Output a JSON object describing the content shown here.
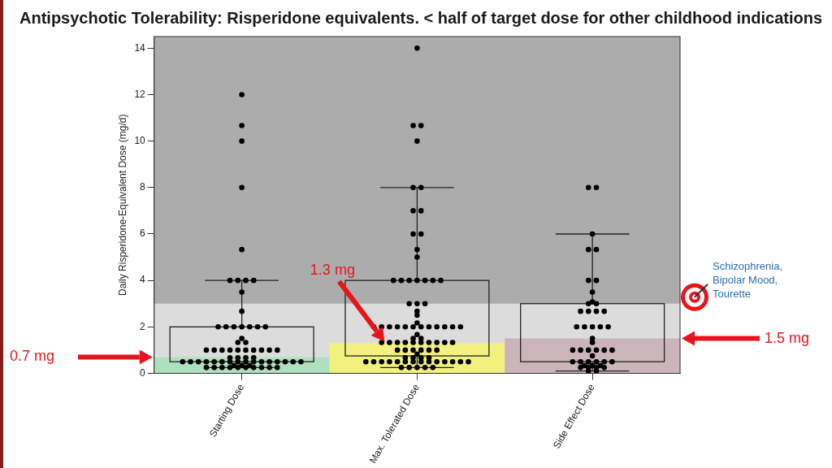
{
  "chart_data": {
    "type": "box",
    "title": "Antipsychotic Tolerability: Risperidone equivalents.  < half of target dose for other childhood indications",
    "y_label": "Daily Risperidone-Equivalent Dose (mg/d)",
    "categories": [
      "Starting Dose",
      "Max. Tolerated Dose",
      "Side Effect Dose"
    ],
    "color": "#000000",
    "points": [
      [
        12,
        10.67,
        10,
        8,
        5.33,
        4,
        4,
        4,
        4,
        3.5,
        2.67,
        2,
        2,
        2,
        2,
        2,
        2,
        2,
        1.5,
        1.33,
        1.33,
        1,
        1,
        1,
        1,
        1,
        1,
        1,
        1,
        1,
        1,
        0.67,
        0.67,
        0.67,
        0.67,
        0.5,
        0.5,
        0.5,
        0.5,
        0.5,
        0.5,
        0.5,
        0.5,
        0.5,
        0.5,
        0.5,
        0.5,
        0.5,
        0.5,
        0.5,
        0.5,
        0.33,
        0.33,
        0.33,
        0.25,
        0.25,
        0.25,
        0.25,
        0.25,
        0.25,
        0.25,
        0.25,
        0.25,
        0.25
      ],
      [
        14,
        10.67,
        10.67,
        10,
        8,
        8,
        7,
        7,
        6,
        6,
        5.33,
        5,
        4,
        4,
        4,
        4,
        4,
        4,
        4,
        3,
        3,
        3,
        2.67,
        2.5,
        2.17,
        2,
        2,
        2,
        2,
        2,
        2,
        2,
        2,
        2,
        2,
        2,
        2,
        1.67,
        1.5,
        1.5,
        1.33,
        1.33,
        1.33,
        1.33,
        1.33,
        1.33,
        1.33,
        1.33,
        1.33,
        1.33,
        1,
        1,
        1,
        1,
        1,
        1,
        0.83,
        0.67,
        0.67,
        0.67,
        0.67,
        0.5,
        0.5,
        0.5,
        0.5,
        0.5,
        0.5,
        0.5,
        0.5,
        0.5,
        0.5,
        0.5,
        0.5,
        0.5,
        0.5,
        0.25,
        0.25,
        0.25,
        0.25,
        0.25
      ],
      [
        8,
        8,
        6,
        5.33,
        5.33,
        4,
        4,
        3.5,
        3.08,
        3,
        3,
        2.67,
        2.67,
        2.67,
        2.67,
        2,
        2,
        2,
        2,
        2,
        1.5,
        1.33,
        1,
        1,
        1,
        1,
        1,
        1,
        0.75,
        0.5,
        0.5,
        0.5,
        0.5,
        0.5,
        0.5,
        0.33,
        0.33,
        0.33,
        0.25,
        0.25,
        0.25,
        0.25,
        0.1,
        0.1
      ]
    ],
    "boxes": [
      {
        "whisker_low": 0.25,
        "q1": 0.5,
        "q3": 2,
        "whisker_high": 4
      },
      {
        "whisker_low": 0.25,
        "q1": 0.75,
        "q3": 4,
        "whisker_high": 8
      },
      {
        "whisker_low": 0.1,
        "q1": 0.5,
        "q3": 3,
        "whisker_high": 6
      }
    ],
    "thresholds": [
      {
        "category": "Starting Dose",
        "value": 0.7,
        "label": "0.7 mg",
        "color": "#aee0c0"
      },
      {
        "category": "Max. Tolerated Dose",
        "value": 1.3,
        "label": "1.3 mg",
        "color": "#f2f07e"
      },
      {
        "category": "Side Effect Dose",
        "value": 1.5,
        "label": "1.5 mg",
        "color": "#cbb5ba"
      }
    ],
    "target": {
      "value": 3,
      "label_lines": [
        "Schizophrenia,",
        "Bipolar Mood,",
        "Tourette"
      ],
      "color": "#dcdcdc"
    },
    "ylim": [
      0,
      14.5
    ],
    "yticks": [
      0,
      2,
      4,
      6,
      8,
      10,
      12,
      14
    ],
    "grid": false
  }
}
